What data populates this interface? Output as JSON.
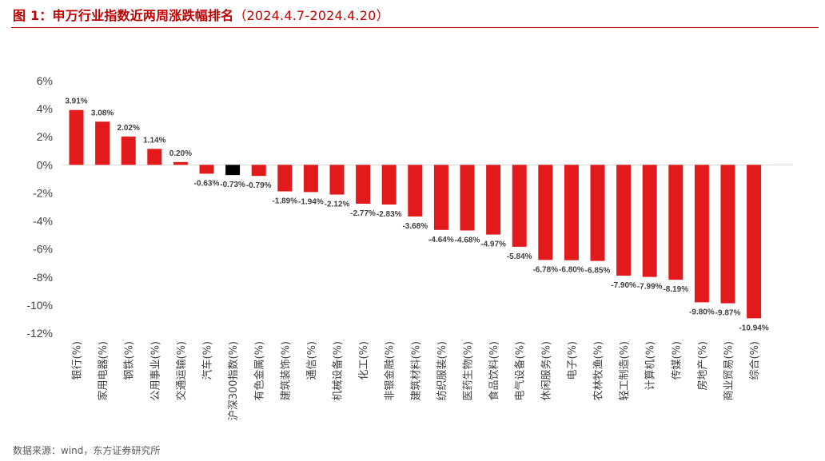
{
  "title": {
    "main": "图 1：申万行业指数近两周涨跌幅排名",
    "range": "（2024.4.7-2024.4.20）"
  },
  "source": "数据来源：wind，东方证券研究所",
  "colors": {
    "bar": "#e31a1c",
    "index_bar": "#000000",
    "title": "#c00000",
    "axis": "#d9d9d9"
  },
  "chart_data": {
    "type": "bar",
    "title": "",
    "xlabel": "",
    "ylabel": "",
    "ylim": [
      -12,
      6
    ],
    "yticks": [
      6,
      4,
      2,
      0,
      -2,
      -4,
      -6,
      -8,
      -10,
      -12
    ],
    "ytick_labels": [
      "6%",
      "4%",
      "2%",
      "0%",
      "-2%",
      "-4%",
      "-6%",
      "-8%",
      "-10%",
      "-12%"
    ],
    "grid": false,
    "legend": "none",
    "categories": [
      "银行(%)",
      "家用电器(%)",
      "钢铁(%)",
      "公用事业(%)",
      "交通运输(%)",
      "汽车(%)",
      "沪深300指数(%)",
      "有色金属(%)",
      "建筑装饰(%)",
      "通信(%)",
      "机械设备(%)",
      "化工(%)",
      "非银金融(%)",
      "建筑材料(%)",
      "纺织服装(%)",
      "医药生物(%)",
      "食品饮料(%)",
      "电气设备(%)",
      "休闲服务(%)",
      "电子(%)",
      "农林牧渔(%)",
      "轻工制造(%)",
      "计算机(%)",
      "传媒(%)",
      "房地产(%)",
      "商业贸易(%)",
      "综合(%)"
    ],
    "values": [
      3.91,
      3.08,
      2.02,
      1.14,
      0.2,
      -0.63,
      -0.73,
      -0.79,
      -1.89,
      -1.94,
      -2.12,
      -2.77,
      -2.83,
      -3.68,
      -4.64,
      -4.68,
      -4.97,
      -5.84,
      -6.78,
      -6.8,
      -6.85,
      -7.9,
      -7.99,
      -8.19,
      -9.8,
      -9.87,
      -10.94
    ],
    "data_labels": [
      "3.91%",
      "3.08%",
      "2.02%",
      "1.14%",
      "0.20%",
      "-0.63%",
      "-0.73%",
      "-0.79%",
      "-1.89%",
      "-1.94%",
      "-2.12%",
      "-2.77%",
      "-2.83%",
      "-3.68%",
      "-4.64%",
      "-4.68%",
      "-4.97%",
      "-5.84%",
      "-6.78%",
      "-6.80%",
      "-6.85%",
      "-7.90%",
      "-7.99%",
      "-8.19%",
      "-9.80%",
      "-9.87%",
      "-10.94%"
    ],
    "highlight": {
      "category": "沪深300指数(%)",
      "color": "#000000"
    }
  }
}
